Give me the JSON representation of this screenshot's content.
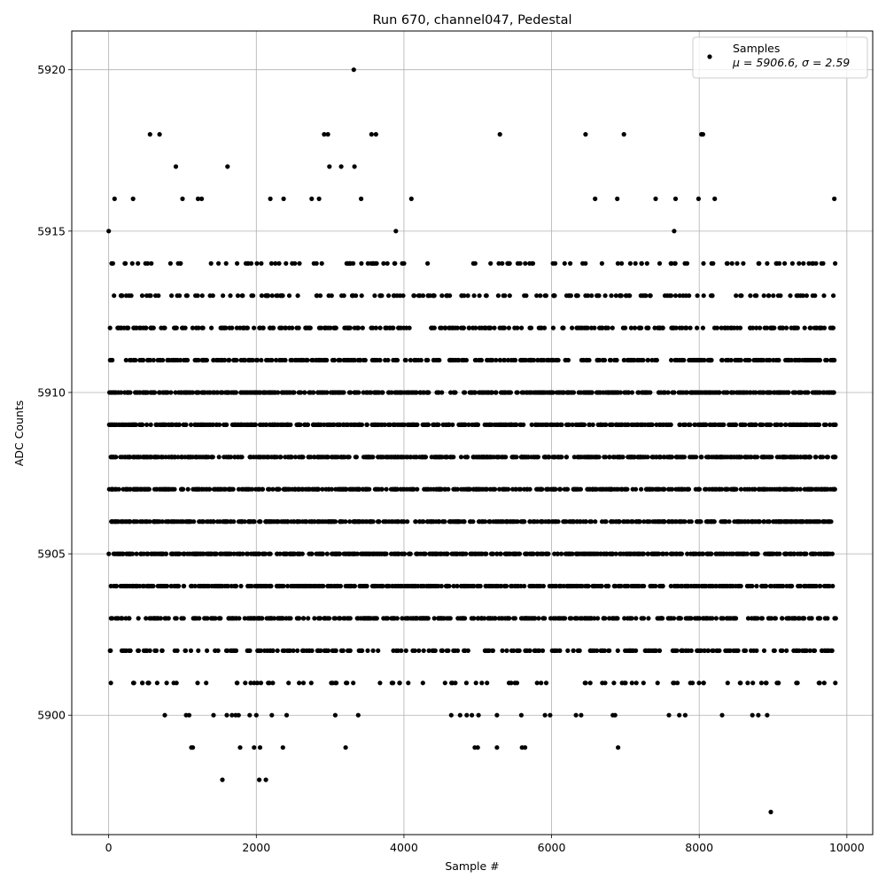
{
  "chart_data": {
    "type": "scatter",
    "title": "Run 670, channel047, Pedestal",
    "xlabel": "Sample #",
    "ylabel": "ADC Counts",
    "xlim": [
      -500,
      10350
    ],
    "ylim": [
      5896.3,
      5921.2
    ],
    "xticks": [
      0,
      2000,
      4000,
      6000,
      8000,
      10000
    ],
    "xtick_labels": [
      "0",
      "2000",
      "4000",
      "6000",
      "8000",
      "10000"
    ],
    "yticks": [
      5900,
      5905,
      5910,
      5915,
      5920
    ],
    "ytick_labels": [
      "5900",
      "5905",
      "5910",
      "5915",
      "5920"
    ],
    "grid": true,
    "legend": {
      "placement": "top-right",
      "series_label": "Samples",
      "stats_label": "μ = 5906.6, σ = 2.59"
    },
    "marker_color": "#000000",
    "series": [
      {
        "name": "Samples",
        "points": [
          [
            0,
            5915
          ],
          [
            3320,
            5920
          ],
          [
            560,
            5918
          ],
          [
            690,
            5918
          ],
          [
            2920,
            5918
          ],
          [
            2970,
            5918
          ],
          [
            3560,
            5918
          ],
          [
            3620,
            5918
          ],
          [
            5300,
            5918
          ],
          [
            6460,
            5918
          ],
          [
            6980,
            5918
          ],
          [
            8030,
            5918
          ],
          [
            8050,
            5918
          ],
          [
            910,
            5917
          ],
          [
            1610,
            5917
          ],
          [
            2990,
            5917
          ],
          [
            3150,
            5917
          ],
          [
            3330,
            5917
          ],
          [
            80,
            5916
          ],
          [
            330,
            5916
          ],
          [
            1000,
            5916
          ],
          [
            1210,
            5916
          ],
          [
            1260,
            5916
          ],
          [
            2190,
            5916
          ],
          [
            2370,
            5916
          ],
          [
            2750,
            5916
          ],
          [
            2850,
            5916
          ],
          [
            3420,
            5916
          ],
          [
            4100,
            5916
          ],
          [
            6590,
            5916
          ],
          [
            6890,
            5916
          ],
          [
            7410,
            5916
          ],
          [
            7680,
            5916
          ],
          [
            7990,
            5916
          ],
          [
            8210,
            5916
          ],
          [
            9830,
            5916
          ],
          [
            3890,
            5915
          ],
          [
            7660,
            5915
          ],
          [
            1540,
            5898
          ],
          [
            2040,
            5898
          ],
          [
            2130,
            5898
          ],
          [
            8970,
            5897
          ],
          [
            1120,
            5899
          ],
          [
            1140,
            5899
          ],
          [
            1780,
            5899
          ],
          [
            1970,
            5899
          ],
          [
            2050,
            5899
          ],
          [
            2360,
            5899
          ],
          [
            3210,
            5899
          ],
          [
            4960,
            5899
          ],
          [
            5000,
            5899
          ],
          [
            5260,
            5899
          ],
          [
            5600,
            5899
          ],
          [
            5640,
            5899
          ],
          [
            6900,
            5899
          ],
          [
            760,
            5900
          ],
          [
            1050,
            5900
          ],
          [
            1090,
            5900
          ],
          [
            1420,
            5900
          ],
          [
            1600,
            5900
          ],
          [
            1670,
            5900
          ],
          [
            1720,
            5900
          ],
          [
            1760,
            5900
          ],
          [
            1910,
            5900
          ],
          [
            2000,
            5900
          ],
          [
            2210,
            5900
          ],
          [
            2410,
            5900
          ],
          [
            3070,
            5900
          ],
          [
            3380,
            5900
          ],
          [
            4640,
            5900
          ],
          [
            4760,
            5900
          ],
          [
            4850,
            5900
          ],
          [
            4920,
            5900
          ],
          [
            5010,
            5900
          ],
          [
            5260,
            5900
          ],
          [
            5590,
            5900
          ],
          [
            5910,
            5900
          ],
          [
            5980,
            5900
          ],
          [
            6330,
            5900
          ],
          [
            6400,
            5900
          ],
          [
            6830,
            5900
          ],
          [
            6860,
            5900
          ],
          [
            7590,
            5900
          ],
          [
            7730,
            5900
          ],
          [
            7810,
            5900
          ],
          [
            8310,
            5900
          ],
          [
            8720,
            5900
          ],
          [
            8800,
            5900
          ],
          [
            8920,
            5900
          ]
        ],
        "bands": [
          {
            "y": 5914,
            "count": 115
          },
          {
            "y": 5913,
            "count": 175
          },
          {
            "y": 5912,
            "count": 270
          },
          {
            "y": 5911,
            "count": 380
          },
          {
            "y": 5910,
            "count": 520
          },
          {
            "y": 5909,
            "count": 520
          },
          {
            "y": 5908,
            "count": 520
          },
          {
            "y": 5907,
            "count": 520
          },
          {
            "y": 5906,
            "count": 520
          },
          {
            "y": 5905,
            "count": 520
          },
          {
            "y": 5904,
            "count": 500
          },
          {
            "y": 5903,
            "count": 380
          },
          {
            "y": 5902,
            "count": 260
          },
          {
            "y": 5901,
            "count": 95
          }
        ]
      }
    ]
  }
}
